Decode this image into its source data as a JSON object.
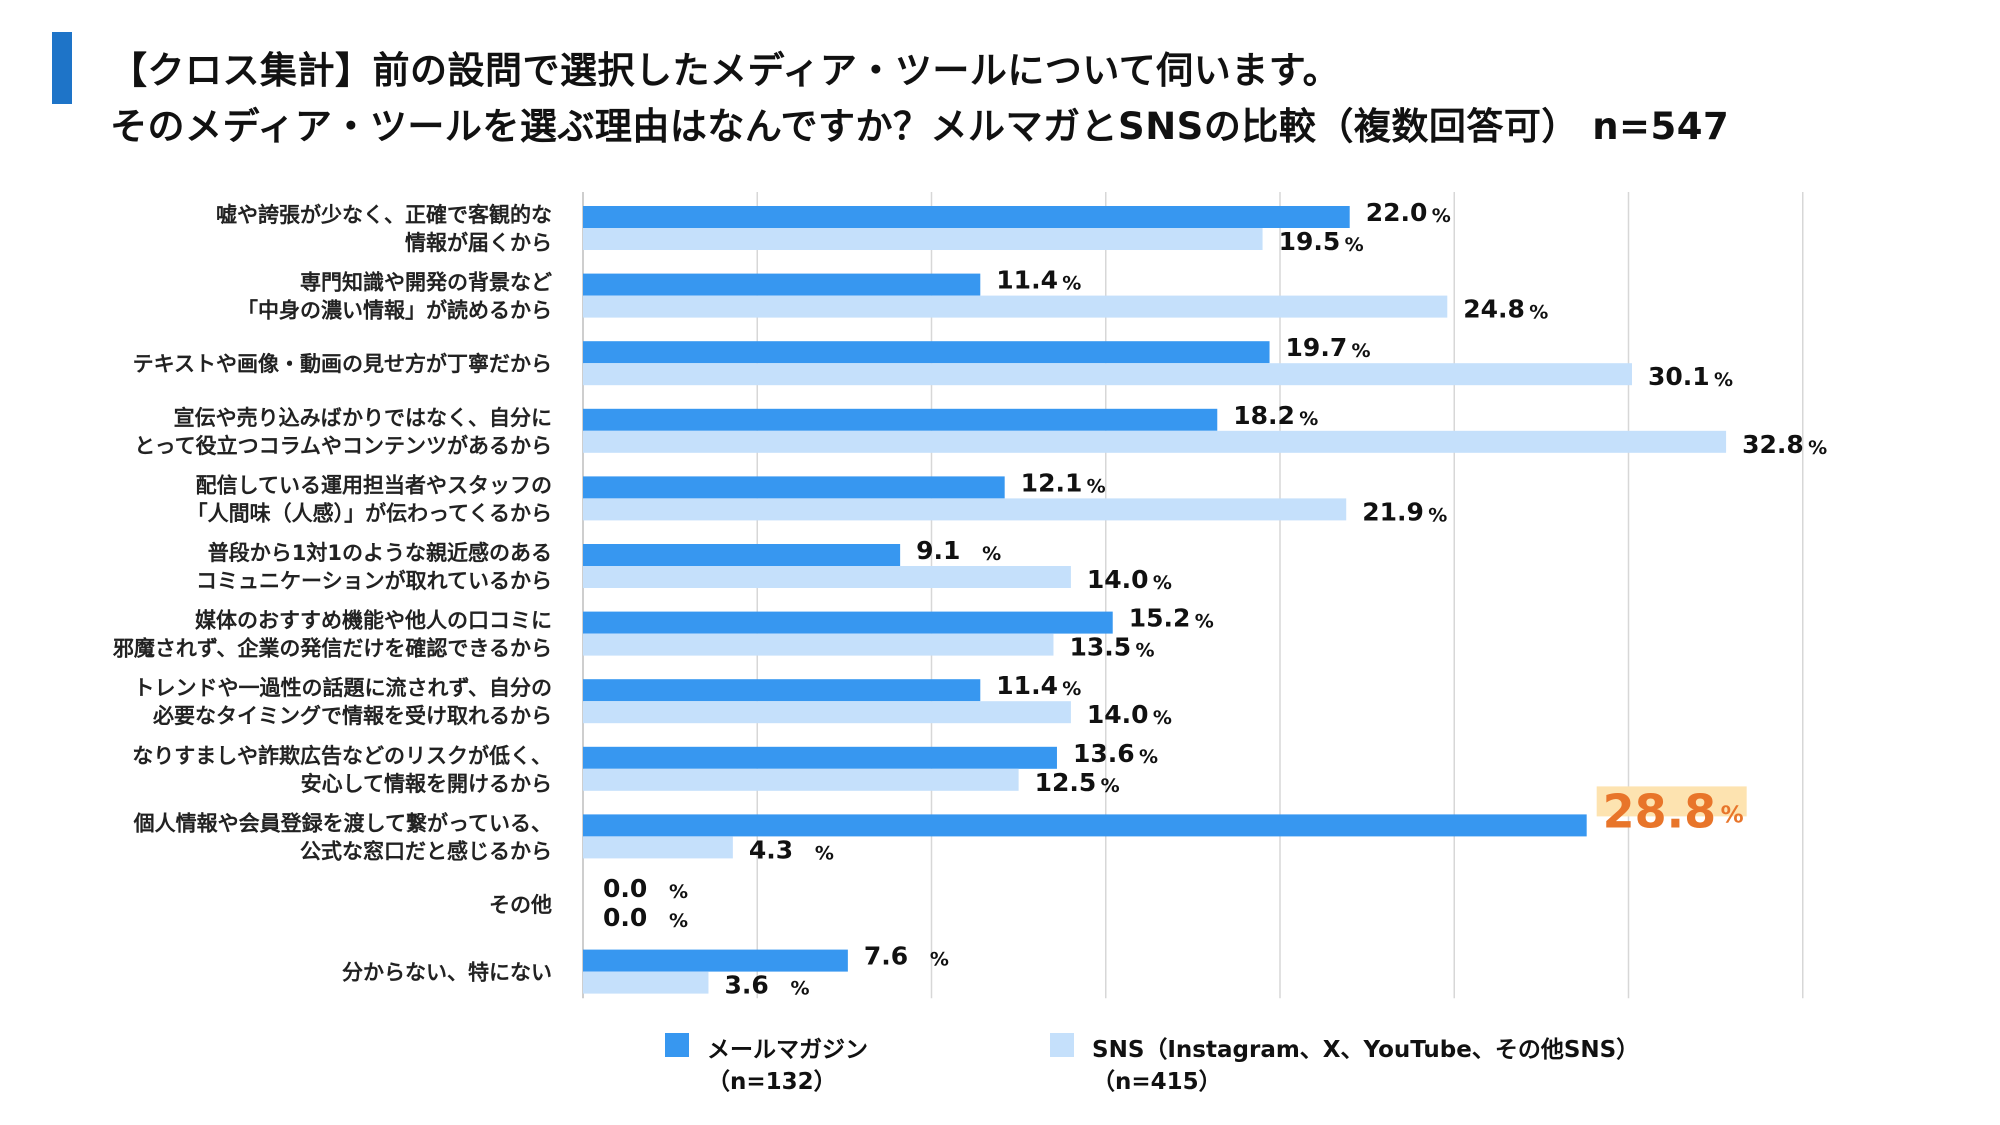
{
  "header": {
    "title_line1": "【クロス集計】前の設問で選択したメディア・ツールについて伺います。",
    "title_line2": "そのメディア・ツールを選ぶ理由はなんですか？メルマガとSNSの比較（複数回答可） n=547"
  },
  "colors": {
    "accent": "#1e74c8",
    "mail": "#3797f0",
    "sns": "#c5e0fb",
    "highlight_text": "#e8752a",
    "highlight_bg": "#fde3b0",
    "grid": "#d7d7d7"
  },
  "chart_data": {
    "type": "bar",
    "orientation": "horizontal",
    "unit": "%",
    "xlim": [
      0,
      35
    ],
    "grid": true,
    "categories": [
      [
        "嘘や誇張が少なく、正確で客観的な",
        "情報が届くから"
      ],
      [
        "専門知識や開発の背景など",
        "「中身の濃い情報」が読めるから"
      ],
      [
        "テキストや画像・動画の見せ方が丁寧だから"
      ],
      [
        "宣伝や売り込みばかりではなく、自分に",
        "とって役立つコラムやコンテンツがあるから"
      ],
      [
        "配信している運用担当者やスタッフの",
        "「人間味（人感）」が伝わってくるから"
      ],
      [
        "普段から1対1のような親近感のある",
        "コミュニケーションが取れているから"
      ],
      [
        "媒体のおすすめ機能や他人の口コミに",
        "邪魔されず、企業の発信だけを確認できるから"
      ],
      [
        "トレンドや一過性の話題に流されず、自分の",
        "必要なタイミングで情報を受け取れるから"
      ],
      [
        "なりすましや詐欺広告などのリスクが低く、",
        "安心して情報を開けるから"
      ],
      [
        "個人情報や会員登録を渡して繋がっている、",
        "公式な窓口だと感じるから"
      ],
      [
        "その他"
      ],
      [
        "分からない、特にない"
      ]
    ],
    "series": [
      {
        "name": "メールマガジン",
        "n_label": "（n=132）",
        "values": [
          22.0,
          11.4,
          19.7,
          18.2,
          12.1,
          9.1,
          15.2,
          11.4,
          13.6,
          28.8,
          0.0,
          7.6
        ]
      },
      {
        "name": "SNS（Instagram、X、YouTube、その他SNS）",
        "n_label": "（n=415）",
        "values": [
          19.5,
          24.8,
          30.1,
          32.8,
          21.9,
          14.0,
          13.5,
          14.0,
          12.5,
          4.3,
          0.0,
          3.6
        ]
      }
    ],
    "highlight": {
      "series": 0,
      "index": 9
    },
    "legend_position": "bottom"
  }
}
